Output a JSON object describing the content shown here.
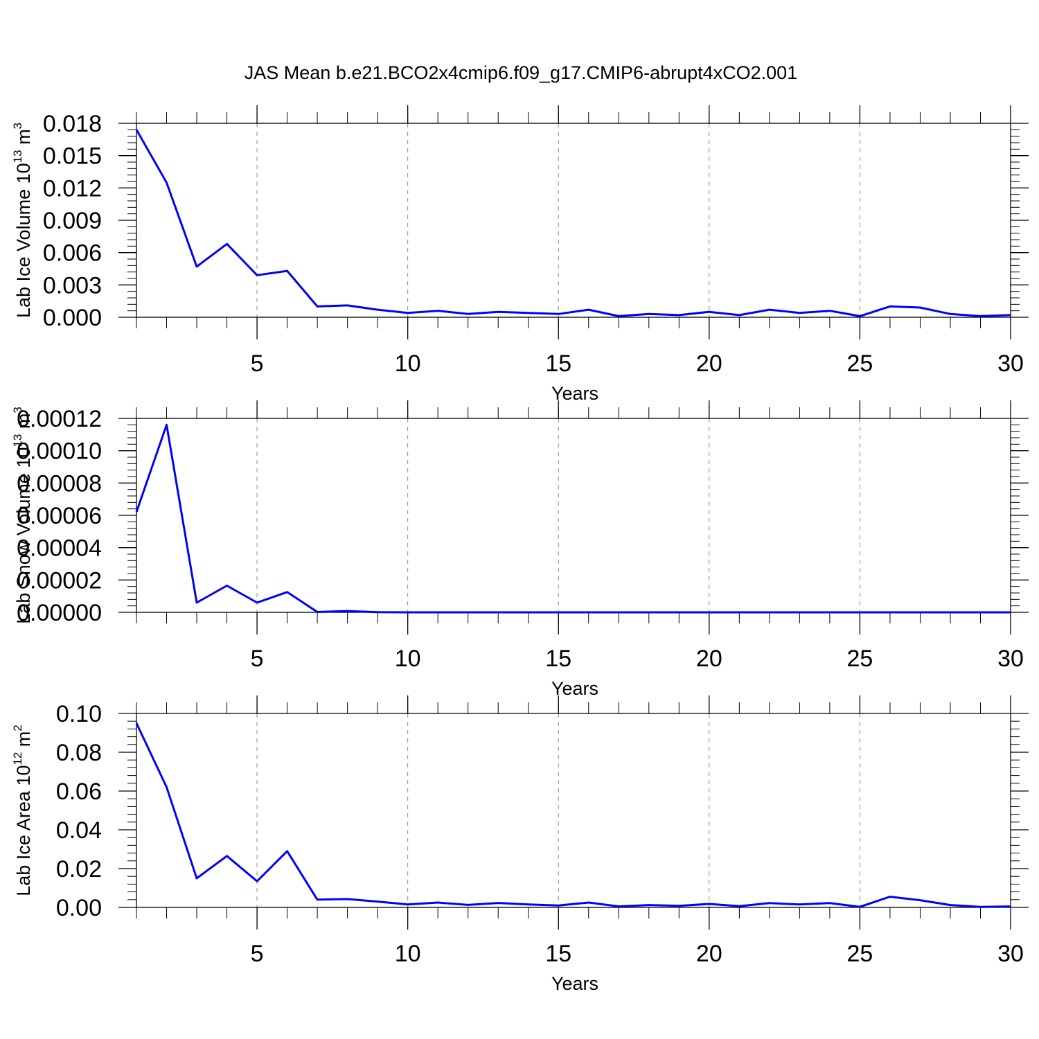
{
  "figure": {
    "title": "JAS Mean b.e21.BCO2x4cmip6.f09_g17.CMIP6-abrupt4xCO2.001"
  },
  "colors": {
    "line": "#0000ff",
    "axes": "#000000",
    "grid": "#888888"
  },
  "chart_data": [
    {
      "type": "line",
      "title": "",
      "xlabel": "Years",
      "ylabel": {
        "base": "Lab Ice Volume 10",
        "exp": "13",
        "unit": " m",
        "unit_exp": "3"
      },
      "xlim": [
        1,
        30
      ],
      "ylim": [
        0,
        0.018
      ],
      "grid": "vertical dashed",
      "xticks": [
        "5",
        "10",
        "15",
        "20",
        "25",
        "30"
      ],
      "yticks": [
        "0.000",
        "0.003",
        "0.006",
        "0.009",
        "0.012",
        "0.015",
        "0.018"
      ],
      "x": [
        1,
        2,
        3,
        4,
        5,
        6,
        7,
        8,
        9,
        10,
        11,
        12,
        13,
        14,
        15,
        16,
        17,
        18,
        19,
        20,
        21,
        22,
        23,
        24,
        25,
        26,
        27,
        28,
        29,
        30
      ],
      "series": [
        {
          "values": [
            0.0174,
            0.0125,
            0.0047,
            0.0068,
            0.0039,
            0.0043,
            0.001,
            0.0011,
            0.0007,
            0.0004,
            0.0006,
            0.0003,
            0.0005,
            0.0004,
            0.0003,
            0.0007,
            0.0001,
            0.0003,
            0.0002,
            0.0005,
            0.0002,
            0.0007,
            0.0004,
            0.0006,
            0.0001,
            0.001,
            0.0009,
            0.0003,
            0.0001,
            0.0002
          ]
        }
      ]
    },
    {
      "type": "line",
      "title": "",
      "xlabel": "Years",
      "ylabel": {
        "base": "Lab Snow Volume 10",
        "exp": "13",
        "unit": " m",
        "unit_exp": "3"
      },
      "xlim": [
        1,
        30
      ],
      "ylim": [
        0,
        0.00012
      ],
      "grid": "vertical dashed",
      "xticks": [
        "5",
        "10",
        "15",
        "20",
        "25",
        "30"
      ],
      "yticks": [
        "0.00000",
        "0.00002",
        "0.00004",
        "0.00006",
        "0.00008",
        "0.00010",
        "0.00012"
      ],
      "x": [
        1,
        2,
        3,
        4,
        5,
        6,
        7,
        8,
        9,
        10,
        11,
        12,
        13,
        14,
        15,
        16,
        17,
        18,
        19,
        20,
        21,
        22,
        23,
        24,
        25,
        26,
        27,
        28,
        29,
        30
      ],
      "series": [
        {
          "values": [
            6.2e-05,
            0.000116,
            6e-06,
            1.65e-05,
            6e-06,
            1.25e-05,
            2e-07,
            8e-07,
            1e-07,
            0,
            0,
            0,
            0,
            0,
            0,
            0,
            0,
            0,
            0,
            0,
            0,
            0,
            0,
            0,
            0,
            0,
            0,
            0,
            0,
            0
          ]
        }
      ]
    },
    {
      "type": "line",
      "title": "",
      "xlabel": "Years",
      "ylabel": {
        "base": "Lab Ice Area 10",
        "exp": "12",
        "unit": " m",
        "unit_exp": "2"
      },
      "xlim": [
        1,
        30
      ],
      "ylim": [
        0,
        0.1
      ],
      "grid": "vertical dashed",
      "xticks": [
        "5",
        "10",
        "15",
        "20",
        "25",
        "30"
      ],
      "yticks": [
        "0.00",
        "0.02",
        "0.04",
        "0.06",
        "0.08",
        "0.10"
      ],
      "x": [
        1,
        2,
        3,
        4,
        5,
        6,
        7,
        8,
        9,
        10,
        11,
        12,
        13,
        14,
        15,
        16,
        17,
        18,
        19,
        20,
        21,
        22,
        23,
        24,
        25,
        26,
        27,
        28,
        29,
        30
      ],
      "series": [
        {
          "values": [
            0.095,
            0.062,
            0.015,
            0.0265,
            0.0135,
            0.029,
            0.004,
            0.0043,
            0.003,
            0.0015,
            0.0025,
            0.0013,
            0.0023,
            0.0015,
            0.001,
            0.0025,
            0.0005,
            0.0012,
            0.0008,
            0.0018,
            0.0006,
            0.0022,
            0.0015,
            0.0022,
            0.0003,
            0.0055,
            0.0037,
            0.0012,
            0.0003,
            0.0005
          ]
        }
      ]
    }
  ]
}
